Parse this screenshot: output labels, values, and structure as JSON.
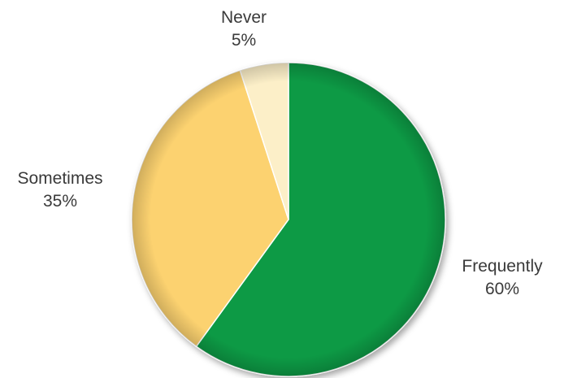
{
  "chart_data": {
    "type": "pie",
    "categories": [
      "Frequently",
      "Sometimes",
      "Never"
    ],
    "values": [
      60,
      35,
      5
    ],
    "value_labels": [
      "60%",
      "35%",
      "5%"
    ],
    "colors": [
      "#0a9a45",
      "#fcd270",
      "#fcefc8"
    ],
    "start": "12 o'clock",
    "direction": "clockwise",
    "legend": "none"
  }
}
